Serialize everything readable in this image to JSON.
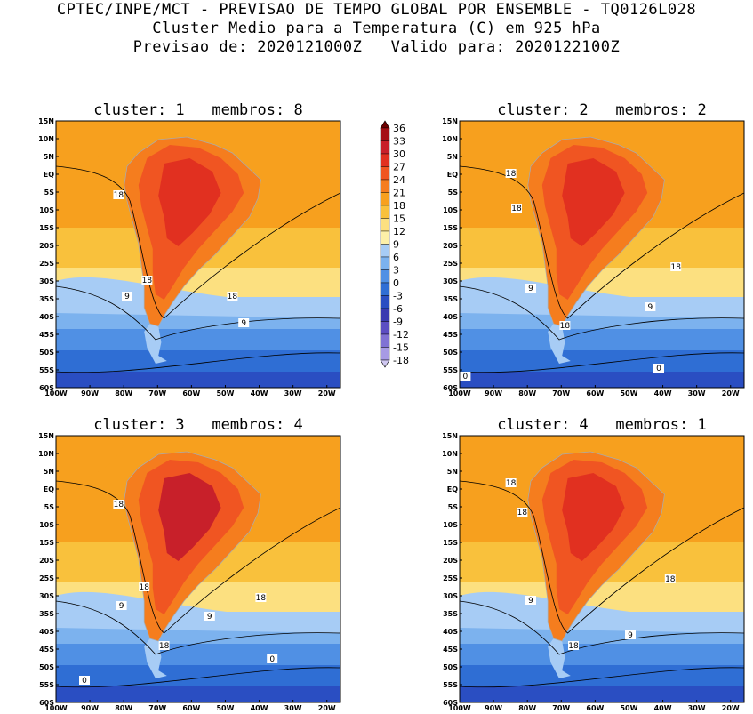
{
  "header": {
    "line1": "CPTEC/INPE/MCT - PREVISAO DE TEMPO GLOBAL POR ENSEMBLE - TQ0126L028",
    "line2": "Cluster Medio para a Temperatura (C) em 925 hPa",
    "line3": "Previsao de: 2020121000Z   Valido para: 2020122100Z"
  },
  "panels": [
    {
      "title": "cluster: 1   membros: 8"
    },
    {
      "title": "cluster: 2   membros: 2"
    },
    {
      "title": "cluster: 3   membros: 4"
    },
    {
      "title": "cluster: 4   membros: 1"
    }
  ],
  "axes": {
    "lat_labels": [
      "15N",
      "10N",
      "5N",
      "EQ",
      "5S",
      "10S",
      "15S",
      "20S",
      "25S",
      "30S",
      "35S",
      "40S",
      "45S",
      "50S",
      "55S",
      "60S"
    ],
    "lon_labels": [
      "100W",
      "90W",
      "80W",
      "70W",
      "60W",
      "50W",
      "40W",
      "30W",
      "20W"
    ]
  },
  "colorbar": {
    "levels": [
      "36",
      "33",
      "30",
      "27",
      "24",
      "21",
      "18",
      "15",
      "12",
      "9",
      "6",
      "3",
      "0",
      "-3",
      "-6",
      "-9",
      "-12",
      "-15",
      "-18"
    ],
    "colors": [
      "#6b0000",
      "#a50f15",
      "#c8202a",
      "#e13020",
      "#f05522",
      "#f57d1e",
      "#f7a01e",
      "#f9c13c",
      "#fce080",
      "#fdf0a8",
      "#a7ccf5",
      "#7cb2ee",
      "#5090e4",
      "#2f6ed4",
      "#2a4ec2",
      "#3b3bb0",
      "#5c4ec2",
      "#8072d4",
      "#a79ae4",
      "#d0c8f2"
    ]
  },
  "contour_labels": {
    "p1": [
      "18",
      "18",
      "18",
      "9",
      "9"
    ],
    "p2": [
      "18",
      "18",
      "18",
      "18",
      "9",
      "9",
      "0",
      "0"
    ],
    "p3": [
      "18",
      "18",
      "18",
      "18",
      "9",
      "9",
      "0",
      "0"
    ],
    "p4": [
      "18",
      "18",
      "18",
      "18",
      "9",
      "9"
    ]
  }
}
